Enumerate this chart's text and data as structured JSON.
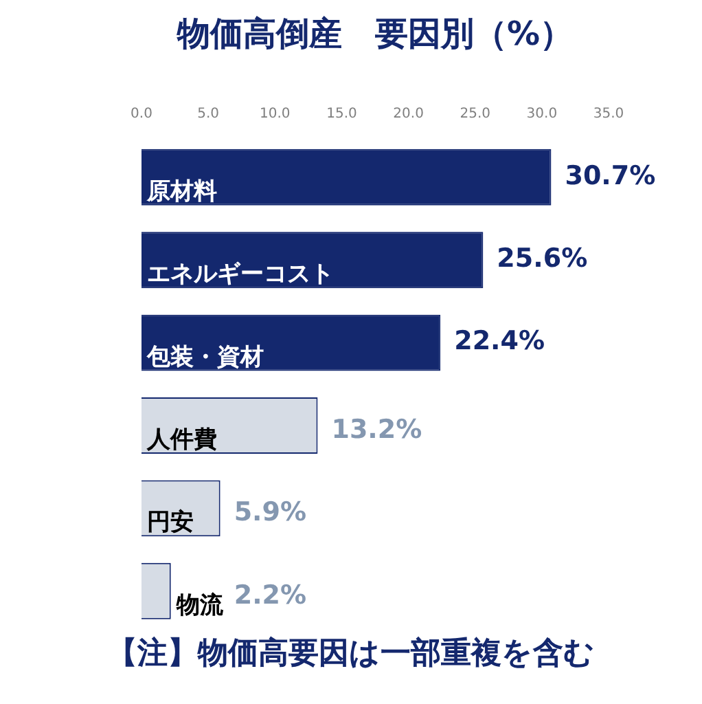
{
  "chart_data": {
    "type": "bar",
    "orientation": "horizontal",
    "title": "物価高倒産　要因別（%）",
    "categories": [
      "原材料",
      "エネルギーコスト",
      "包装・資材",
      "人件費",
      "円安",
      "物流"
    ],
    "values": [
      30.7,
      25.6,
      22.4,
      13.2,
      5.9,
      2.2
    ],
    "colors": [
      "#14286e",
      "#14286e",
      "#14286e",
      "#d6dce5",
      "#d6dce5",
      "#d6dce5"
    ],
    "value_labels": [
      "30.7%",
      "25.6%",
      "22.4%",
      "13.2%",
      "5.9%",
      "2.2%"
    ],
    "xlim": [
      0,
      35
    ],
    "xticks": [
      {
        "value": 0,
        "label": "0.0"
      },
      {
        "value": 5,
        "label": "5.0"
      },
      {
        "value": 10,
        "label": "10.0"
      },
      {
        "value": 15,
        "label": "15.0"
      },
      {
        "value": 20,
        "label": "20.0"
      },
      {
        "value": 25,
        "label": "25.0"
      },
      {
        "value": 30,
        "label": "30.0"
      },
      {
        "value": 35,
        "label": "35.0"
      }
    ],
    "grid": false,
    "legend": false,
    "annotations": [
      "【注】物価高要因は一部重複を含む"
    ]
  }
}
